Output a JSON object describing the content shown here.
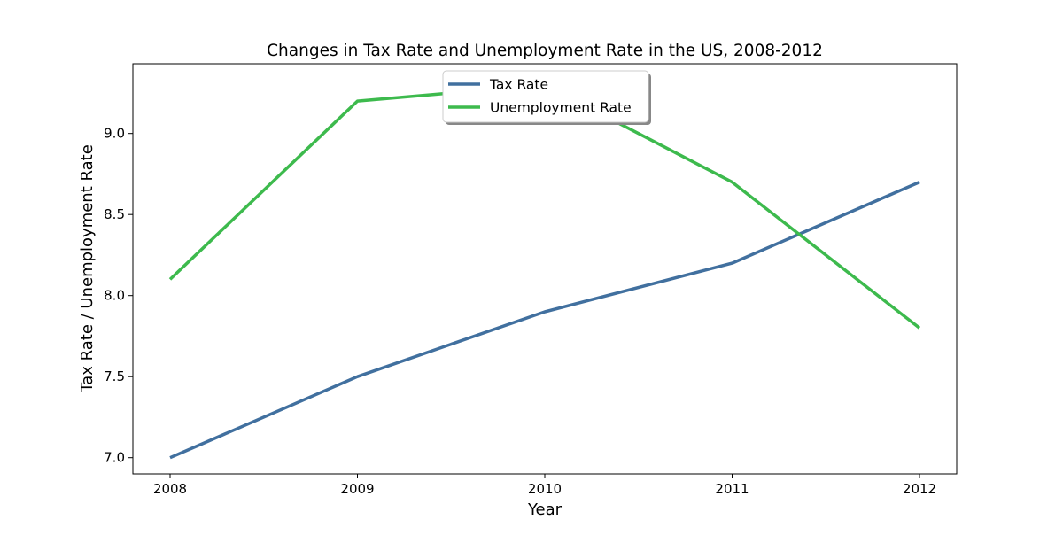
{
  "chart_data": {
    "type": "line",
    "title": "Changes in Tax Rate and Unemployment Rate in the US, 2008-2012",
    "xlabel": "Year",
    "ylabel": "Tax Rate / Unemployment Rate",
    "x": [
      "2008",
      "2009",
      "2010",
      "2011",
      "2012"
    ],
    "series": [
      {
        "name": "Tax Rate",
        "values": [
          7.0,
          7.5,
          7.9,
          8.2,
          8.7
        ],
        "color": "#41709f"
      },
      {
        "name": "Unemployment Rate",
        "values": [
          8.1,
          9.2,
          9.3,
          8.7,
          7.8
        ],
        "color": "#3dba4d"
      }
    ],
    "yticks": [
      "7.0",
      "7.5",
      "8.0",
      "8.5",
      "9.0"
    ],
    "ylim": [
      6.9,
      9.43
    ],
    "grid": false,
    "legend_position": "top-center"
  }
}
